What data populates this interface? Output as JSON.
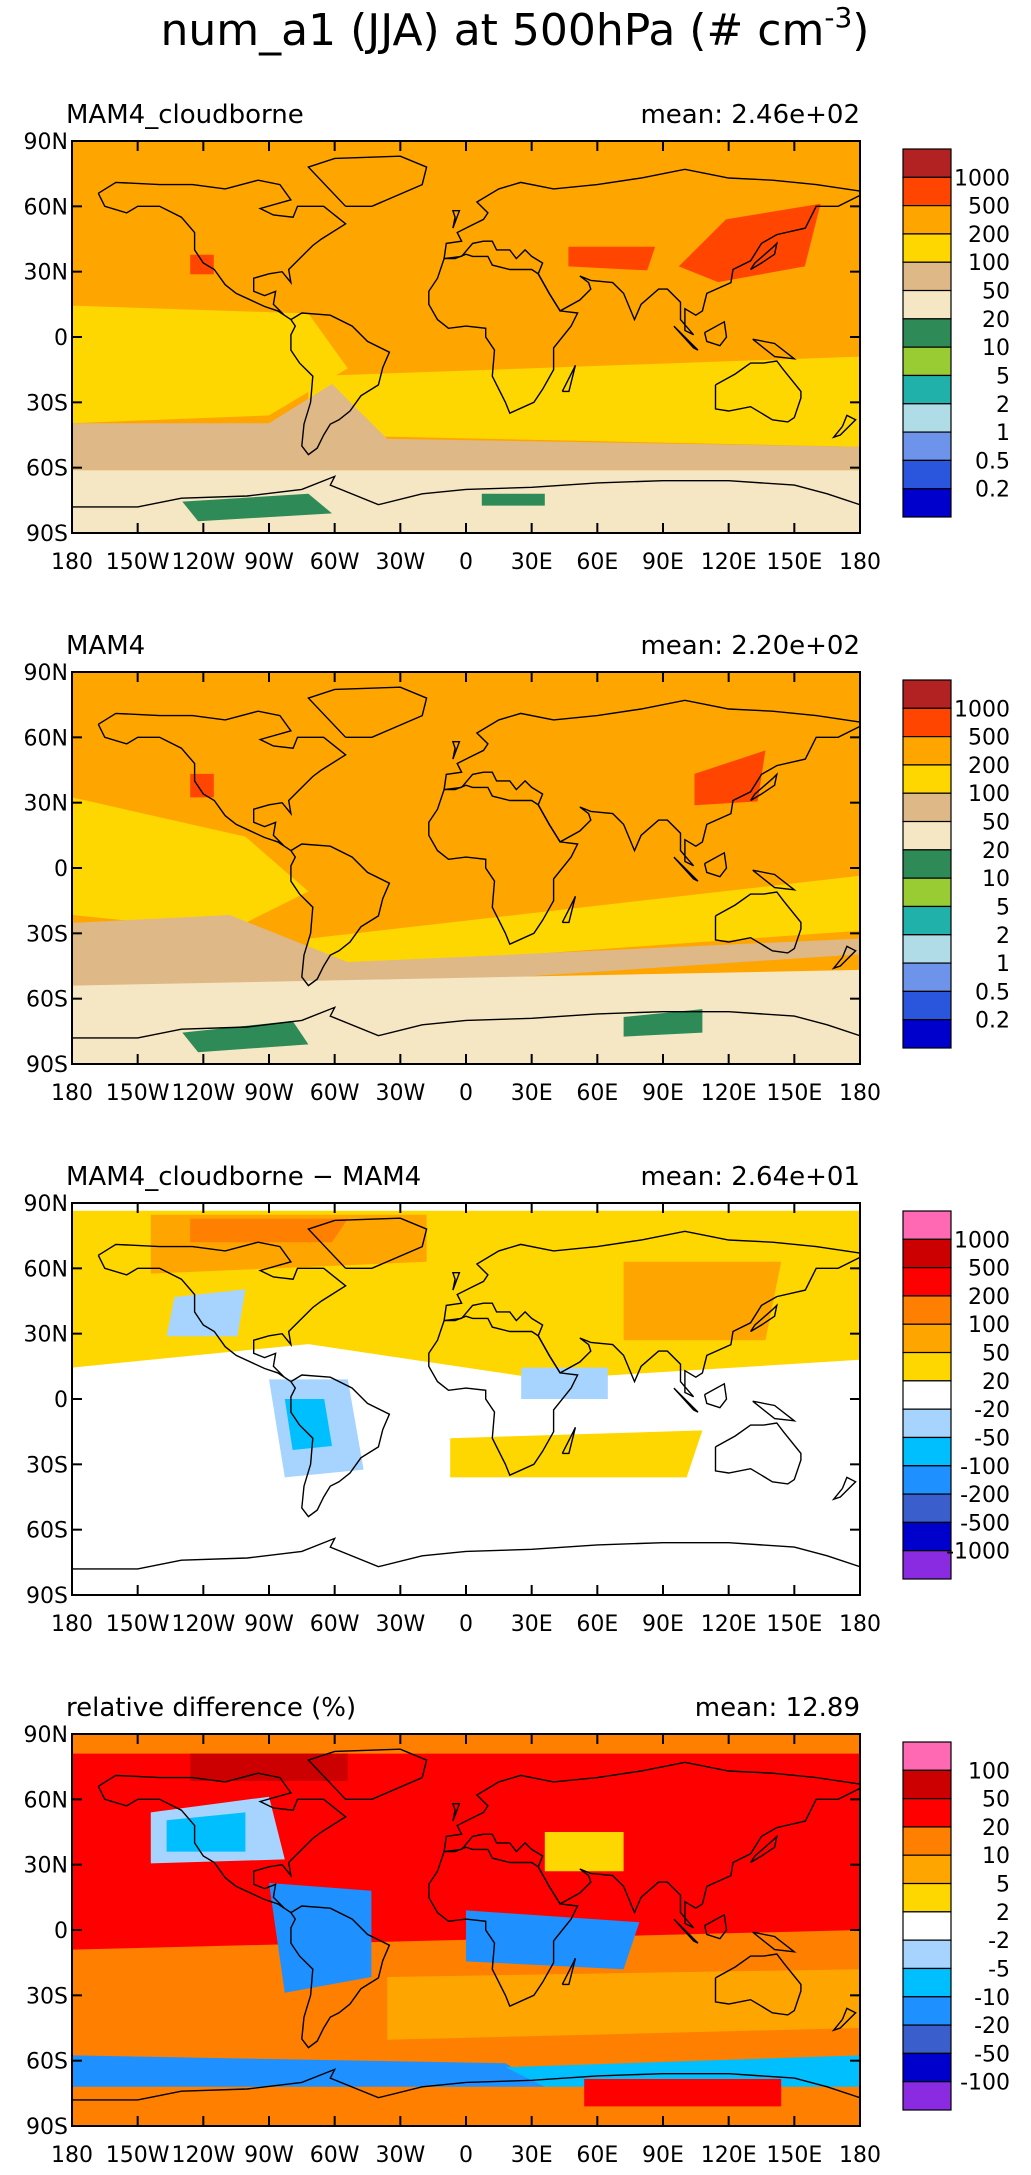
{
  "title": "num_a1 (JJA) at 500hPa (# cm",
  "title_superscript": "-3",
  "title_close": ")",
  "x_ticks": [
    "180",
    "150W",
    "120W",
    "90W",
    "60W",
    "30W",
    "0",
    "30E",
    "60E",
    "90E",
    "120E",
    "150E",
    "180"
  ],
  "y_ticks": [
    "90N",
    "60N",
    "30N",
    "0",
    "30S",
    "60S",
    "90S"
  ],
  "colorbar_abs": {
    "colors": [
      "#0000cc",
      "#2a55dd",
      "#6e93ea",
      "#b0dce8",
      "#20b2aa",
      "#99cc33",
      "#2e8b57",
      "#f5e6c4",
      "#deb887",
      "#ffd700",
      "#ffa500",
      "#ff4500",
      "#b22222"
    ],
    "labels": [
      "0.2",
      "0.5",
      "1",
      "2",
      "5",
      "10",
      "20",
      "50",
      "100",
      "200",
      "500",
      "1000"
    ]
  },
  "colorbar_diff": {
    "colors": [
      "#8a2be2",
      "#0000cd",
      "#3a5fcd",
      "#1e90ff",
      "#00bfff",
      "#a6d4ff",
      "#ffffff",
      "#ffd700",
      "#ffa500",
      "#ff7f00",
      "#ff0000",
      "#cc0000",
      "#ff69b4"
    ],
    "labels": [
      "-1000",
      "-500",
      "-200",
      "-100",
      "-50",
      "-20",
      "20",
      "50",
      "100",
      "200",
      "500",
      "1000"
    ]
  },
  "colorbar_rel": {
    "colors": [
      "#8a2be2",
      "#0000cd",
      "#3a5fcd",
      "#1e90ff",
      "#00bfff",
      "#a6d4ff",
      "#ffffff",
      "#ffd700",
      "#ffa500",
      "#ff7f00",
      "#ff0000",
      "#cc0000",
      "#ff69b4"
    ],
    "labels": [
      "-100",
      "-50",
      "-20",
      "-10",
      "-5",
      "-2",
      "2",
      "5",
      "10",
      "20",
      "50",
      "100"
    ]
  },
  "panels": [
    {
      "label": "MAM4_cloudborne",
      "mean_text": "mean: 2.46e+02",
      "colorbar": "abs"
    },
    {
      "label": "MAM4",
      "mean_text": "mean: 2.20e+02",
      "colorbar": "abs"
    },
    {
      "label": "MAM4_cloudborne − MAM4",
      "mean_text": "mean: 2.64e+01",
      "colorbar": "diff"
    },
    {
      "label": "relative difference (%)",
      "mean_text": "mean: 12.89",
      "colorbar": "rel"
    }
  ],
  "chart_data": [
    {
      "type": "heatmap",
      "title": "MAM4_cloudborne",
      "annotation": "mean: 2.46e+02",
      "x_ticks": [
        "180",
        "150W",
        "120W",
        "90W",
        "60W",
        "30W",
        "0",
        "30E",
        "60E",
        "90E",
        "120E",
        "150E",
        "180"
      ],
      "y_ticks": [
        "90N",
        "60N",
        "30N",
        "0",
        "30S",
        "60S",
        "90S"
      ],
      "xlim": [
        -180,
        180
      ],
      "ylim": [
        -90,
        90
      ],
      "levels": [
        0.2,
        0.5,
        1,
        2,
        5,
        10,
        20,
        50,
        100,
        200,
        500,
        1000
      ],
      "mean": 246
    },
    {
      "type": "heatmap",
      "title": "MAM4",
      "annotation": "mean: 2.20e+02",
      "x_ticks": [
        "180",
        "150W",
        "120W",
        "90W",
        "60W",
        "30W",
        "0",
        "30E",
        "60E",
        "90E",
        "120E",
        "150E",
        "180"
      ],
      "y_ticks": [
        "90N",
        "60N",
        "30N",
        "0",
        "30S",
        "60S",
        "90S"
      ],
      "xlim": [
        -180,
        180
      ],
      "ylim": [
        -90,
        90
      ],
      "levels": [
        0.2,
        0.5,
        1,
        2,
        5,
        10,
        20,
        50,
        100,
        200,
        500,
        1000
      ],
      "mean": 220
    },
    {
      "type": "heatmap",
      "title": "MAM4_cloudborne − MAM4",
      "annotation": "mean: 2.64e+01",
      "x_ticks": [
        "180",
        "150W",
        "120W",
        "90W",
        "60W",
        "30W",
        "0",
        "30E",
        "60E",
        "90E",
        "120E",
        "150E",
        "180"
      ],
      "y_ticks": [
        "90N",
        "60N",
        "30N",
        "0",
        "30S",
        "60S",
        "90S"
      ],
      "xlim": [
        -180,
        180
      ],
      "ylim": [
        -90,
        90
      ],
      "levels": [
        -1000,
        -500,
        -200,
        -100,
        -50,
        -20,
        20,
        50,
        100,
        200,
        500,
        1000
      ],
      "mean": 26.4
    },
    {
      "type": "heatmap",
      "title": "relative difference (%)",
      "annotation": "mean: 12.89",
      "x_ticks": [
        "180",
        "150W",
        "120W",
        "90W",
        "60W",
        "30W",
        "0",
        "30E",
        "60E",
        "90E",
        "120E",
        "150E",
        "180"
      ],
      "y_ticks": [
        "90N",
        "60N",
        "30N",
        "0",
        "30S",
        "60S",
        "90S"
      ],
      "xlim": [
        -180,
        180
      ],
      "ylim": [
        -90,
        90
      ],
      "levels": [
        -100,
        -50,
        -20,
        -10,
        -5,
        -2,
        2,
        5,
        10,
        20,
        50,
        100
      ],
      "mean": 12.89
    }
  ]
}
